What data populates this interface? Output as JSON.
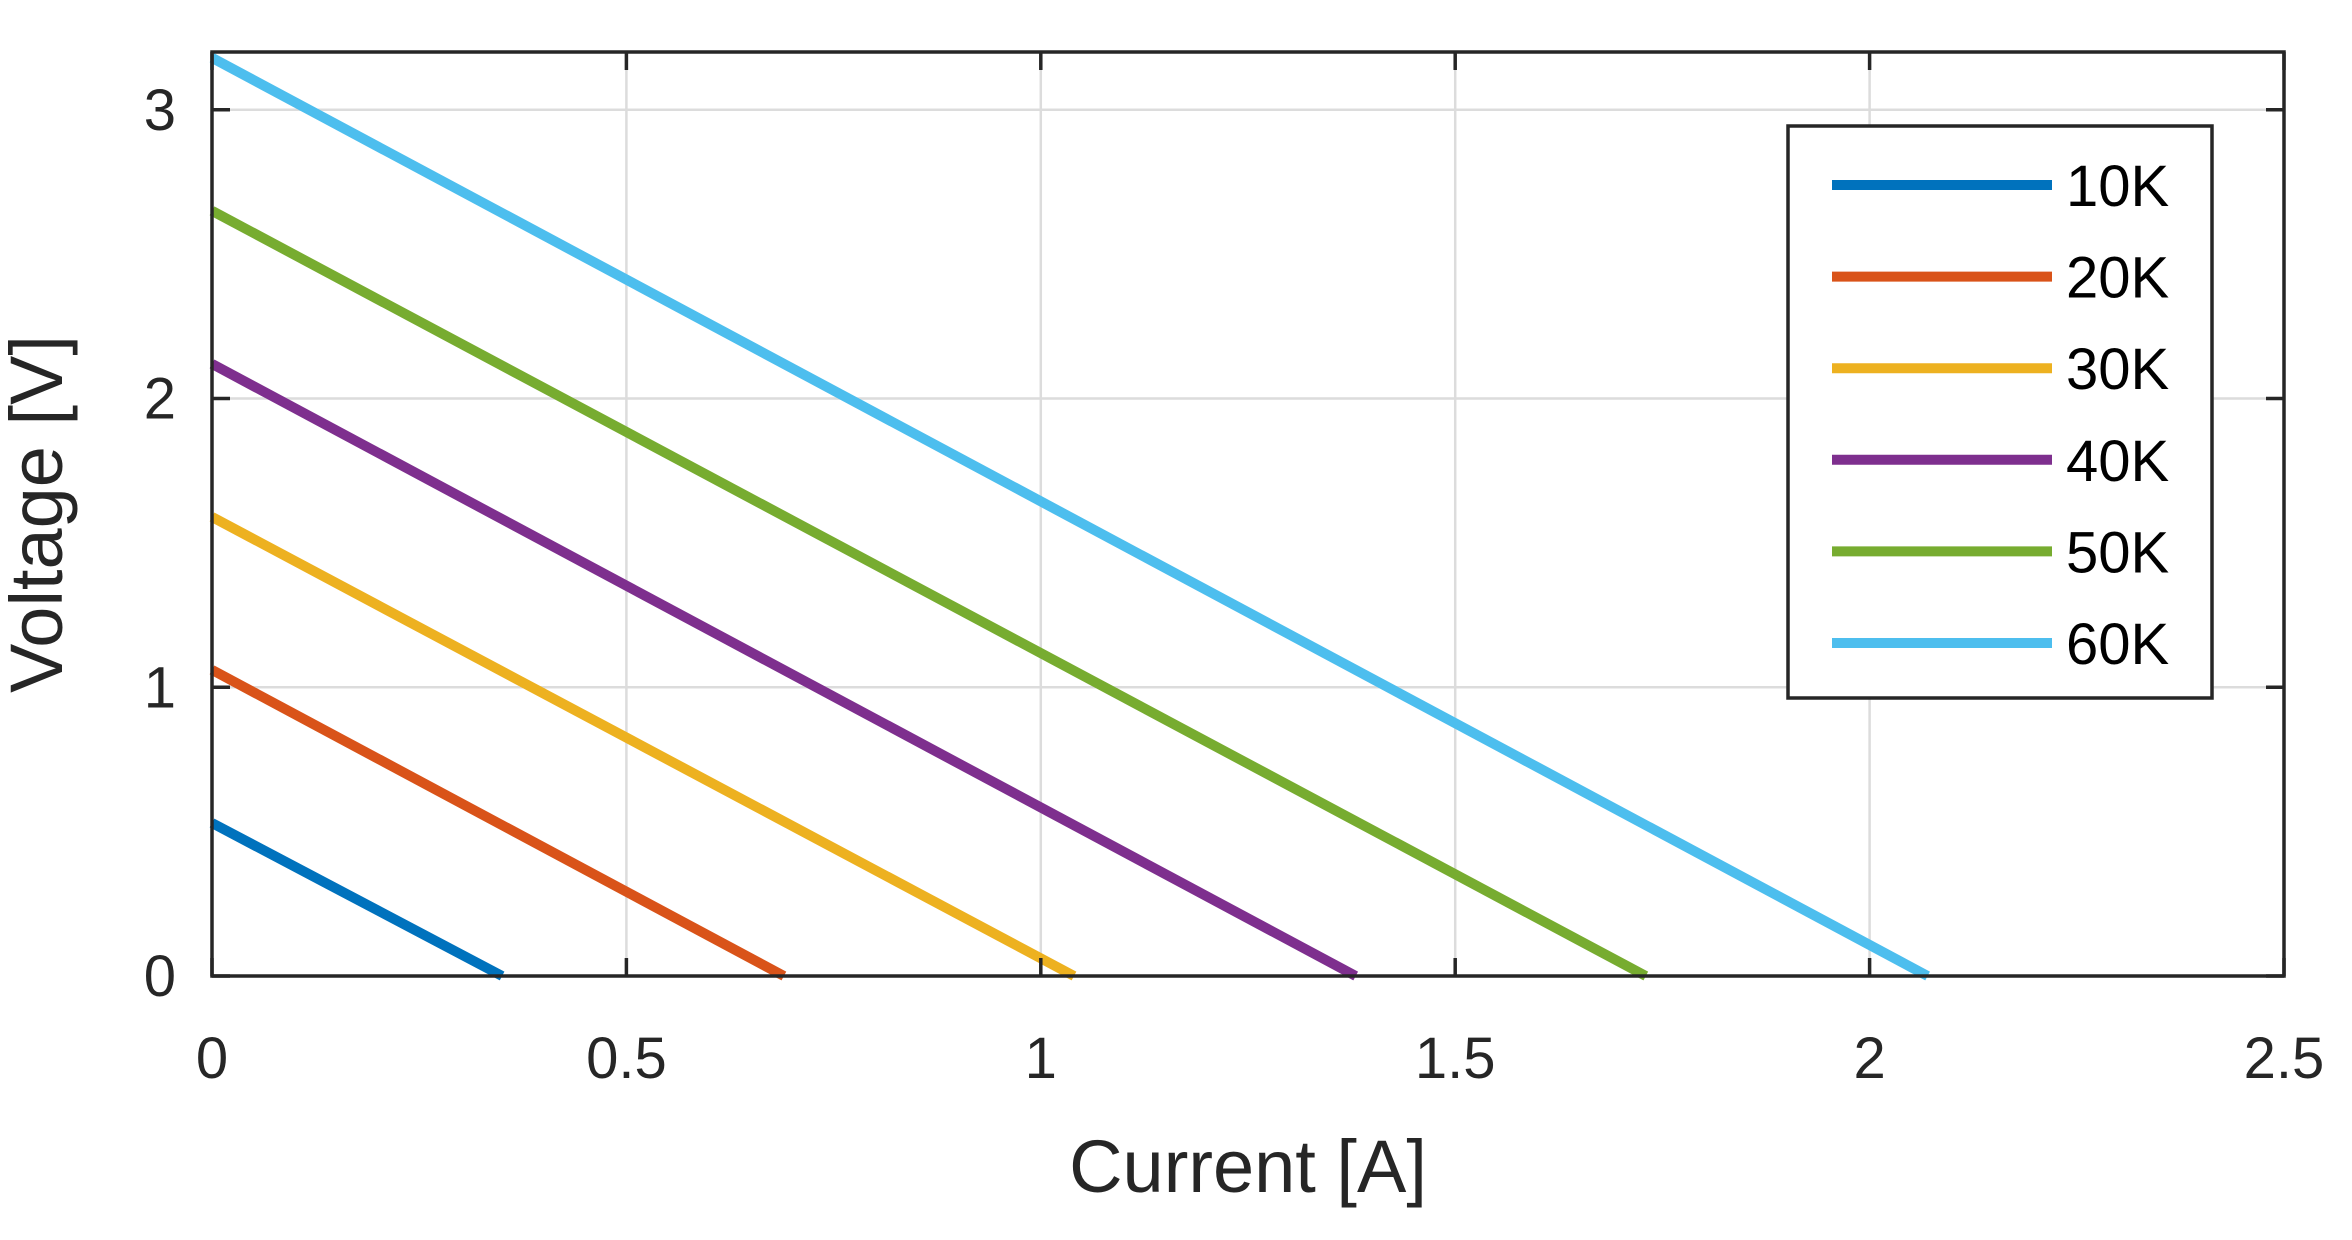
{
  "chart_data": {
    "type": "line",
    "title": "",
    "xlabel": "Current [A]",
    "ylabel": "Voltage [V]",
    "xlim": [
      0,
      2.5
    ],
    "ylim": [
      0,
      3.2
    ],
    "xticks": [
      0,
      0.5,
      1,
      1.5,
      2,
      2.5
    ],
    "xtick_labels": [
      "0",
      "0.5",
      "1",
      "1.5",
      "2",
      "2.5"
    ],
    "yticks": [
      0,
      1,
      2,
      3
    ],
    "ytick_labels": [
      "0",
      "1",
      "2",
      "3"
    ],
    "grid": true,
    "legend_position": "top-right",
    "series": [
      {
        "name": "10K",
        "color": "#0072BD",
        "x": [
          0,
          0.35
        ],
        "y": [
          0.53,
          0
        ]
      },
      {
        "name": "20K",
        "color": "#D95319",
        "x": [
          0,
          0.69
        ],
        "y": [
          1.06,
          0
        ]
      },
      {
        "name": "30K",
        "color": "#EDB120",
        "x": [
          0,
          1.04
        ],
        "y": [
          1.59,
          0
        ]
      },
      {
        "name": "40K",
        "color": "#7E2F8E",
        "x": [
          0,
          1.38
        ],
        "y": [
          2.12,
          0
        ]
      },
      {
        "name": "50K",
        "color": "#77AC30",
        "x": [
          0,
          1.73
        ],
        "y": [
          2.65,
          0
        ]
      },
      {
        "name": "60K",
        "color": "#4DBEEE",
        "x": [
          0,
          2.07
        ],
        "y": [
          3.18,
          0
        ]
      }
    ]
  }
}
